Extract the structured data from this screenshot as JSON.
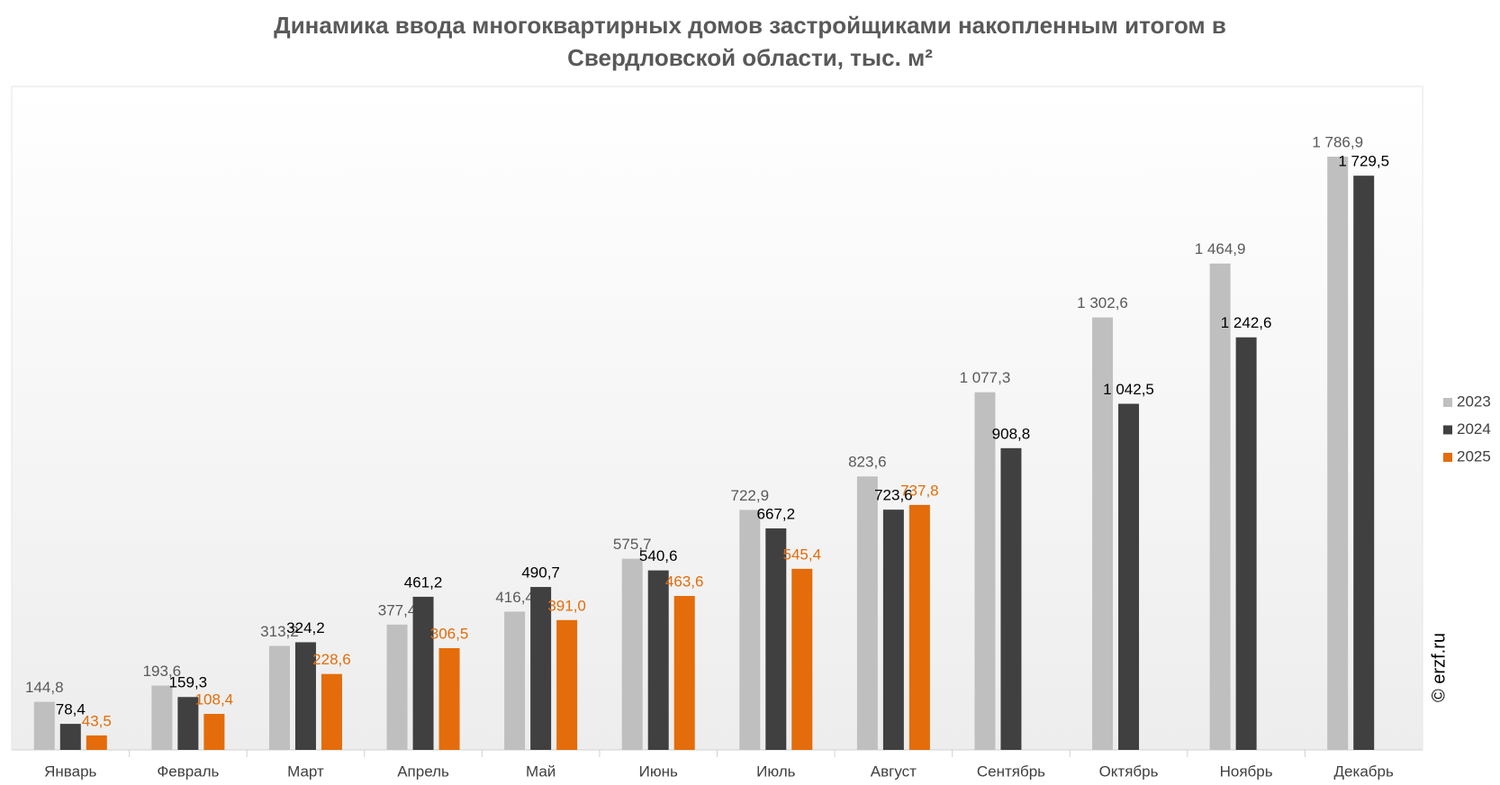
{
  "chart_data": {
    "type": "bar",
    "title": "Динамика ввода многоквартирных домов застройщиками накопленным итогом в Свердловской области, тыс. м²",
    "watermark": "© erzf.ru",
    "categories": [
      "Январь",
      "Февраль",
      "Март",
      "Апрель",
      "Май",
      "Июнь",
      "Июль",
      "Август",
      "Сентябрь",
      "Октябрь",
      "Ноябрь",
      "Декабрь"
    ],
    "series": [
      {
        "name": "2023",
        "color": "#bfbfbf",
        "label_color": "#595959",
        "values": [
          144.8,
          193.6,
          313.2,
          377.4,
          416.4,
          575.7,
          722.9,
          823.6,
          1077.3,
          1302.6,
          1464.9,
          1786.9
        ],
        "value_labels": [
          "144,8",
          "193,6",
          "313,2",
          "377,4",
          "416,4",
          "575,7",
          "722,9",
          "823,6",
          "1 077,3",
          "1 302,6",
          "1 464,9",
          "1 786,9"
        ]
      },
      {
        "name": "2024",
        "color": "#404040",
        "label_color": "#000000",
        "values": [
          78.4,
          159.3,
          324.2,
          461.2,
          490.7,
          540.6,
          667.2,
          723.6,
          908.8,
          1042.5,
          1242.6,
          1729.5
        ],
        "value_labels": [
          "78,4",
          "159,3",
          "324,2",
          "461,2",
          "490,7",
          "540,6",
          "667,2",
          "723,6",
          "908,8",
          "1 042,5",
          "1 242,6",
          "1 729,5"
        ]
      },
      {
        "name": "2025",
        "color": "#e46c0a",
        "label_color": "#e46c0a",
        "values": [
          43.5,
          108.4,
          228.6,
          306.5,
          391.0,
          463.6,
          545.4,
          737.8,
          null,
          null,
          null,
          null
        ],
        "value_labels": [
          "43,5",
          "108,4",
          "228,6",
          "306,5",
          "391,0",
          "463,6",
          "545,4",
          "737,8",
          null,
          null,
          null,
          null
        ]
      }
    ],
    "legend": "right"
  }
}
